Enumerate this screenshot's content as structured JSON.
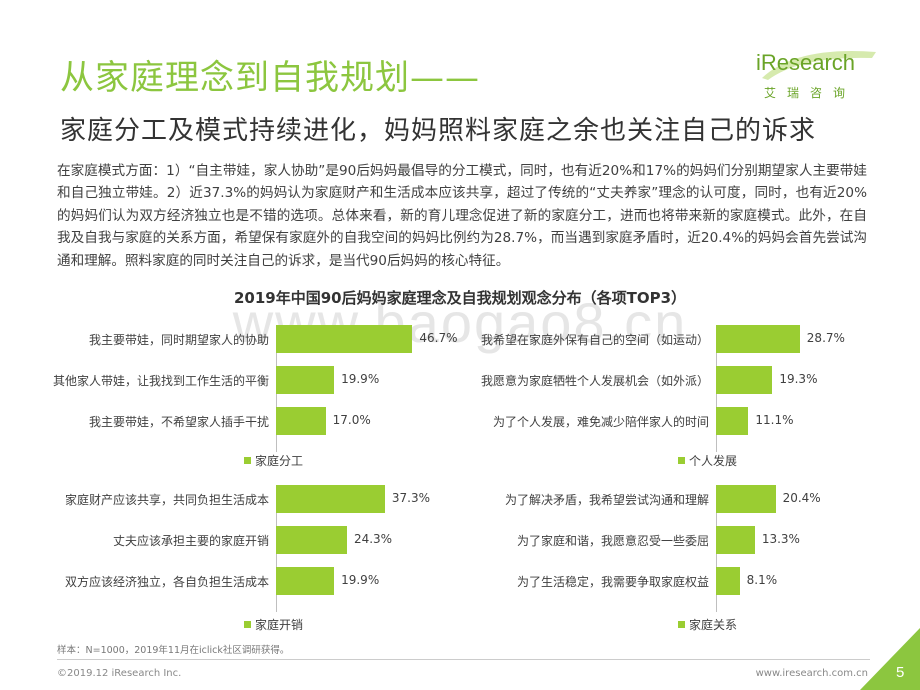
{
  "header": {
    "title": "从家庭理念到自我规划——",
    "subtitle": "家庭分工及模式持续进化，妈妈照料家庭之余也关注自己的诉求"
  },
  "logo": {
    "main": "iResearch",
    "sub": "艾瑞咨询"
  },
  "body_text": "在家庭模式方面：1）“自主带娃，家人协助”是90后妈妈最倡导的分工模式，同时，也有近20%和17%的妈妈们分别期望家人主要带娃和自己独立带娃。2）近37.3%的妈妈认为家庭财产和生活成本应该共享，超过了传统的“丈夫养家”理念的认可度，同时，也有近20%的妈妈们认为双方经济独立也是不错的选项。总体来看，新的育儿理念促进了新的家庭分工，进而也将带来新的家庭模式。此外，在自我及自我与家庭的关系方面，希望保有家庭外的自我空间的妈妈比例约为28.7%，而当遇到家庭矛盾时，近20.4%的妈妈会首先尝试沟通和理解。照料家庭的同时关注自己的诉求，是当代90后妈妈的核心特征。",
  "watermark": "www.baogao8.cn",
  "chart_data": {
    "title": "2019年中国90后妈妈家庭理念及自我规划观念分布（各项TOP3）",
    "charts": [
      {
        "type": "bar",
        "orientation": "horizontal",
        "legend": "家庭分工",
        "categories": [
          "我主要带娃，同时期望家人的协助",
          "其他家人带娃，让我找到工作生活的平衡",
          "我主要带娃，不希望家人插手干扰"
        ],
        "values": [
          46.7,
          19.9,
          17.0
        ],
        "labels": [
          "46.7%",
          "19.9%",
          "17.0%"
        ],
        "color": "#9acd32"
      },
      {
        "type": "bar",
        "orientation": "horizontal",
        "legend": "个人发展",
        "categories": [
          "我希望在家庭外保有自己的空间（如运动）",
          "我愿意为家庭牺牲个人发展机会（如外派）",
          "为了个人发展，难免减少陪伴家人的时间"
        ],
        "values": [
          28.7,
          19.3,
          11.1
        ],
        "labels": [
          "28.7%",
          "19.3%",
          "11.1%"
        ],
        "color": "#9acd32"
      },
      {
        "type": "bar",
        "orientation": "horizontal",
        "legend": "家庭开销",
        "categories": [
          "家庭财产应该共享，共同负担生活成本",
          "丈夫应该承担主要的家庭开销",
          "双方应该经济独立，各自负担生活成本"
        ],
        "values": [
          37.3,
          24.3,
          19.9
        ],
        "labels": [
          "37.3%",
          "24.3%",
          "19.9%"
        ],
        "color": "#9acd32"
      },
      {
        "type": "bar",
        "orientation": "horizontal",
        "legend": "家庭关系",
        "categories": [
          "为了解决矛盾，我希望尝试沟通和理解",
          "为了家庭和谐，我愿意忍受一些委屈",
          "为了生活稳定，我需要争取家庭权益"
        ],
        "values": [
          20.4,
          13.3,
          8.1
        ],
        "labels": [
          "20.4%",
          "13.3%",
          "8.1%"
        ],
        "color": "#9acd32"
      }
    ]
  },
  "footer": {
    "note": "样本：N=1000，2019年11月在iclick社区调研获得。",
    "copyright": "©2019.12 iResearch Inc.",
    "website": "www.iresearch.com.cn",
    "page": "5"
  },
  "colors": {
    "accent": "#8cc63f",
    "bar": "#9acd32"
  }
}
